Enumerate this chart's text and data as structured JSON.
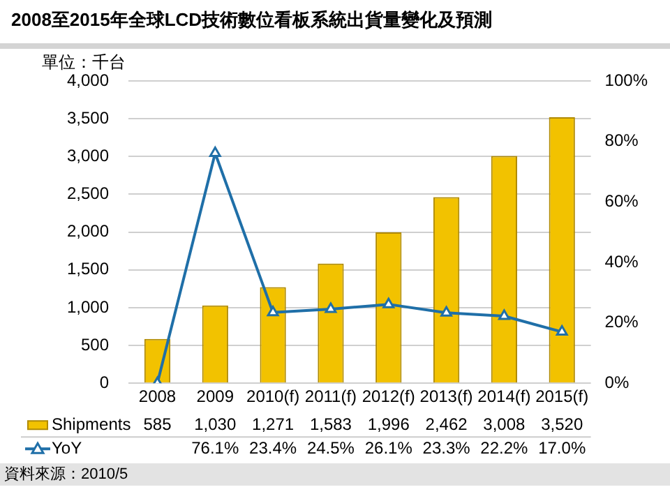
{
  "chart_data": {
    "type": "bar",
    "title": "2008至2015年全球LCD技術數位看板系統出貨量變化及預測",
    "ylabel": "單位：千台",
    "categories": [
      "2008",
      "2009",
      "2010(f)",
      "2011(f)",
      "2012(f)",
      "2013(f)",
      "2014(f)",
      "2015(f)"
    ],
    "series": [
      {
        "name": "Shipments",
        "color": "#f2c200",
        "values": [
          585,
          1030,
          1271,
          1583,
          1996,
          2462,
          3008,
          3520
        ],
        "value_labels": [
          "585",
          "1,030",
          "1,271",
          "1,583",
          "1,996",
          "2,462",
          "3,008",
          "3,520"
        ]
      },
      {
        "name": "YoY",
        "type": "line",
        "axis": "y2",
        "color": "#1f6fa8",
        "marker": "triangle",
        "values": [
          0,
          76.1,
          23.4,
          24.5,
          26.1,
          23.3,
          22.2,
          17.0
        ],
        "value_labels": [
          null,
          "76.1%",
          "23.4%",
          "24.5%",
          "26.1%",
          "23.3%",
          "22.2%",
          "17.0%"
        ]
      }
    ],
    "ylim": [
      0,
      4000
    ],
    "yticks": [
      0,
      {
        "value": 500,
        "label": "500"
      },
      {
        "value": 1000,
        "label": "1,000"
      },
      {
        "value": 1500,
        "label": "1,500"
      },
      {
        "value": 2000,
        "label": "2,000"
      },
      {
        "value": 2500,
        "label": "2,500"
      },
      {
        "value": 3000,
        "label": "3,000"
      },
      {
        "value": 3500,
        "label": "3,500"
      },
      {
        "value": 4000,
        "label": "4,000"
      }
    ],
    "y2lim": [
      0,
      100
    ],
    "y2ticks": [
      {
        "value": 0,
        "label": "0%"
      },
      {
        "value": 20,
        "label": "20%"
      },
      {
        "value": 40,
        "label": "40%"
      },
      {
        "value": 60,
        "label": "60%"
      },
      {
        "value": 80,
        "label": "80%"
      },
      {
        "value": 100,
        "label": "100%"
      }
    ],
    "grid": "y",
    "legend": "bottom",
    "annotations": [
      "資料來源：2010/5"
    ]
  }
}
